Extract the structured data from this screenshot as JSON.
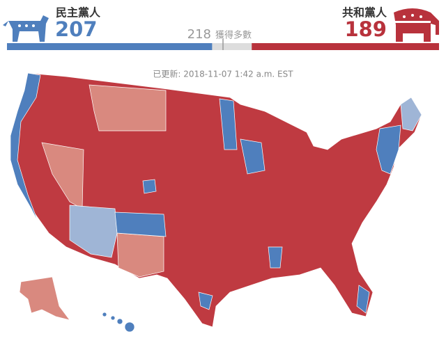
{
  "header": {
    "democrats": {
      "party": "民主黨人",
      "seats": 207
    },
    "republicans": {
      "party": "共和黨人",
      "seats": 189
    },
    "majority": {
      "seats": 218,
      "label": "獲得多數"
    }
  },
  "updated": "已更新: 2018-11-07 1:42 a.m. EST"
}
